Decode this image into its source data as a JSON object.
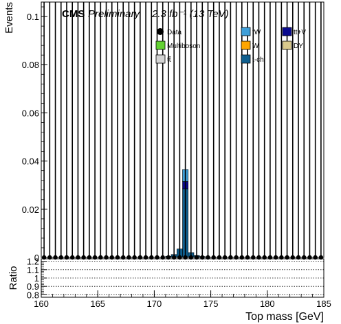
{
  "chart_data": [
    {
      "type": "bar",
      "title": "",
      "cms_label": "CMS",
      "preliminary_label": "Preliminary",
      "lumi_label": "2.3 fb⁻¹ (13 TeV)",
      "ylabel": "Events",
      "xlabel": "",
      "xlim": [
        160,
        185
      ],
      "ylim": [
        0,
        0.106
      ],
      "y_ticks": [
        0,
        0.02,
        0.04,
        0.06,
        0.08,
        0.1
      ],
      "y_tick_labels": [
        "0",
        "0.02",
        "0.04",
        "0.06",
        "0.08",
        "0.1"
      ],
      "bin_width": 0.5,
      "legend_position": "top-right",
      "legend": [
        {
          "name": "Data",
          "marker": "point",
          "color": "#000000"
        },
        {
          "name": "tW",
          "marker": "box",
          "color": "#3f9fd9"
        },
        {
          "name": "tt+V",
          "marker": "box",
          "color": "#0b0b8f"
        },
        {
          "name": "Multiboson",
          "marker": "box",
          "color": "#63d232"
        },
        {
          "name": "W",
          "marker": "box",
          "color": "#ffa500"
        },
        {
          "name": "DY",
          "marker": "box",
          "color": "#d9c98c"
        },
        {
          "name": "tt̄",
          "marker": "box",
          "color": "#d3d3d3"
        },
        {
          "name": "t-ch",
          "marker": "box",
          "color": "#0f5f8f"
        }
      ],
      "stack_bins": [
        {
          "x": 171.25,
          "values": {
            "t-ch": 0.0005
          }
        },
        {
          "x": 171.75,
          "values": {
            "t-ch": 0.0012
          }
        },
        {
          "x": 172.25,
          "values": {
            "t-ch": 0.0035
          }
        },
        {
          "x": 172.75,
          "values": {
            "t-ch": 0.0285,
            "tt+V": 0.003,
            "tW": 0.005
          }
        },
        {
          "x": 173.25,
          "values": {
            "t-ch": 0.002
          }
        },
        {
          "x": 173.75,
          "values": {
            "t-ch": 0.0008
          }
        },
        {
          "x": 174.25,
          "values": {
            "t-ch": 0.0004
          }
        }
      ],
      "data_points": {
        "x_start": 160.25,
        "x_step": 0.5,
        "count": 50,
        "y": 0,
        "error_bar_reaches_top": true
      }
    },
    {
      "type": "scatter",
      "title": "",
      "ylabel": "Ratio",
      "xlabel": "Top mass [GeV]",
      "xlim": [
        160,
        185
      ],
      "ylim": [
        0.77,
        1.23
      ],
      "y_ticks": [
        0.8,
        0.9,
        1.0,
        1.1,
        1.2
      ],
      "y_tick_labels": [
        "0.8",
        "0.9",
        "1",
        "1.1",
        "1.2"
      ],
      "reference_lines": [
        0.8,
        0.9,
        1.0,
        1.1,
        1.2
      ],
      "x_ticks": [
        160,
        165,
        170,
        175,
        180,
        185
      ],
      "x_tick_labels": [
        "160",
        "165",
        "170",
        "175",
        "180",
        "185"
      ]
    }
  ]
}
